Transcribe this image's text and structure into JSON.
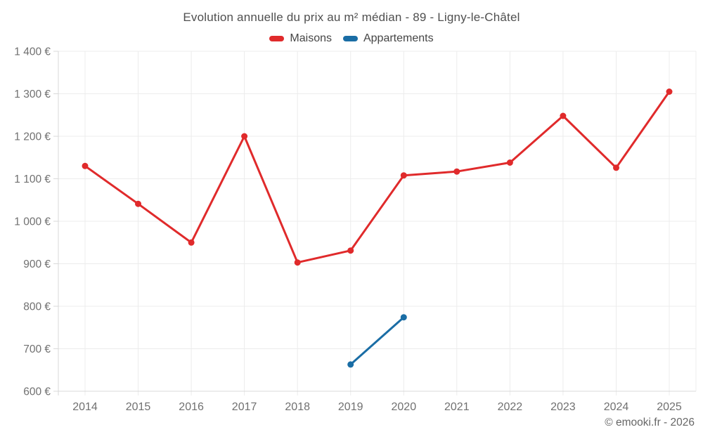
{
  "chart_data": {
    "type": "line",
    "title": "Evolution annuelle du prix au m² médian - 89 - Ligny-le-Châtel",
    "xlabel": "",
    "ylabel": "",
    "categories": [
      "2014",
      "2015",
      "2016",
      "2017",
      "2018",
      "2019",
      "2020",
      "2021",
      "2022",
      "2023",
      "2024",
      "2025"
    ],
    "series": [
      {
        "name": "Maisons",
        "color": "#e02a2b",
        "values": [
          1130,
          1041,
          950,
          1200,
          903,
          931,
          1108,
          1117,
          1138,
          1248,
          1126,
          1305
        ]
      },
      {
        "name": "Appartements",
        "color": "#1a6da5",
        "values": [
          null,
          null,
          null,
          null,
          null,
          663,
          774,
          null,
          null,
          null,
          null,
          null
        ]
      }
    ],
    "ylim": [
      600,
      1400
    ],
    "ytick_step": 100,
    "ytick_labels": [
      "600 €",
      "700 €",
      "800 €",
      "900 €",
      "1 000 €",
      "1 100 €",
      "1 200 €",
      "1 300 €",
      "1 400 €"
    ],
    "grid": true,
    "legend_position": "top-center",
    "text_colors": {
      "title": "#4f4f4f",
      "legend": "#454545",
      "ticks": "#707070",
      "watermark": "#666666"
    },
    "grid_colors": {
      "inner": "#ececec",
      "boundary": "#d9d9d9"
    }
  },
  "footer": {
    "watermark": "© emooki.fr - 2026"
  }
}
